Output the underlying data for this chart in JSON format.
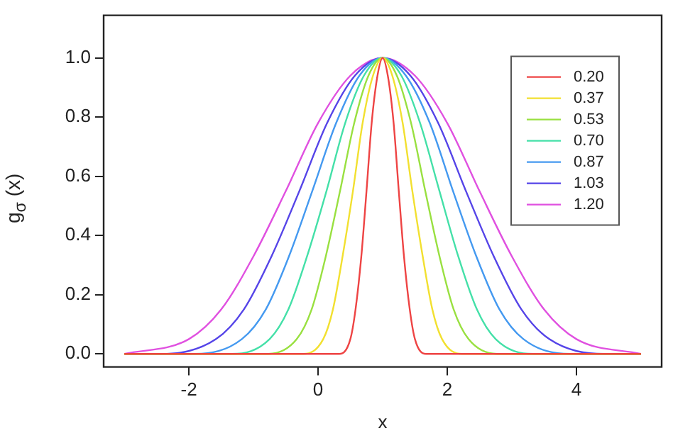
{
  "chart_data": {
    "type": "line",
    "xlabel": "x",
    "ylabel": "g$_{σ}$ (x)",
    "xlim": [
      -3.32,
      5.32
    ],
    "ylim": [
      -0.044,
      1.144
    ],
    "xticks": [
      -2,
      0,
      2,
      4
    ],
    "yticks": [
      {
        "value": 0,
        "label": "0.0"
      },
      {
        "value": 0.2,
        "label": "0.2"
      },
      {
        "value": 0.4,
        "label": "0.4"
      },
      {
        "value": 0.6,
        "label": "0.6"
      },
      {
        "value": 0.8,
        "label": "0.8"
      },
      {
        "value": 1,
        "label": "1.0"
      }
    ],
    "grid": false,
    "legend": "top right",
    "marker": "none",
    "line_style": "solid",
    "series": [
      {
        "name": "0.20",
        "color": "#ee4444",
        "x": [
          -3,
          0.33,
          0.5,
          0.58,
          0.67,
          0.75,
          0.83,
          0.92,
          1,
          1.08,
          1.17,
          1.25,
          1.33,
          1.42,
          1.5,
          1.67,
          5
        ],
        "values": [
          0,
          0,
          0.05,
          0.15,
          0.33,
          0.55,
          0.78,
          0.94,
          1,
          0.94,
          0.78,
          0.55,
          0.33,
          0.15,
          0.05,
          0,
          0
        ]
      },
      {
        "name": "0.37",
        "color": "#f2e030",
        "x": [
          -3,
          -0.23,
          0.08,
          0.23,
          0.38,
          0.54,
          0.69,
          0.85,
          1,
          1.15,
          1.31,
          1.46,
          1.62,
          1.77,
          1.92,
          2.23,
          5
        ],
        "values": [
          0,
          0,
          0.05,
          0.15,
          0.33,
          0.55,
          0.78,
          0.94,
          1,
          0.94,
          0.78,
          0.55,
          0.33,
          0.15,
          0.05,
          0,
          0
        ]
      },
      {
        "name": "0.53",
        "color": "#99e040",
        "x": [
          -3,
          -0.77,
          -0.33,
          -0.1,
          0.12,
          0.34,
          0.56,
          0.78,
          1,
          1.22,
          1.44,
          1.66,
          1.88,
          2.1,
          2.33,
          2.77,
          5
        ],
        "values": [
          0,
          0,
          0.05,
          0.15,
          0.33,
          0.55,
          0.78,
          0.94,
          1,
          0.94,
          0.78,
          0.55,
          0.33,
          0.15,
          0.05,
          0,
          0
        ]
      },
      {
        "name": "0.70",
        "color": "#44e0a8",
        "x": [
          -3,
          -1.33,
          -0.75,
          -0.46,
          -0.17,
          0.13,
          0.42,
          0.71,
          1,
          1.29,
          1.58,
          1.88,
          2.17,
          2.46,
          2.75,
          3.33,
          5
        ],
        "values": [
          0,
          0,
          0.05,
          0.15,
          0.33,
          0.55,
          0.78,
          0.94,
          1,
          0.94,
          0.78,
          0.55,
          0.33,
          0.15,
          0.05,
          0,
          0
        ]
      },
      {
        "name": "0.87",
        "color": "#4499f0",
        "x": [
          -3,
          -1.9,
          -1.18,
          -0.81,
          -0.45,
          -0.09,
          0.28,
          0.64,
          1,
          1.36,
          1.73,
          2.09,
          2.45,
          2.81,
          3.18,
          3.9,
          5
        ],
        "values": [
          0,
          0,
          0.05,
          0.15,
          0.33,
          0.55,
          0.78,
          0.94,
          1,
          0.94,
          0.78,
          0.55,
          0.33,
          0.15,
          0.05,
          0,
          0
        ]
      },
      {
        "name": "1.03",
        "color": "#5544e8",
        "x": [
          -3,
          -2.43,
          -1.58,
          -1.15,
          -0.72,
          -0.29,
          0.14,
          0.57,
          1,
          1.43,
          1.86,
          2.29,
          2.72,
          3.15,
          3.58,
          4.43,
          5
        ],
        "values": [
          0,
          0,
          0.05,
          0.15,
          0.33,
          0.55,
          0.78,
          0.94,
          1,
          0.94,
          0.78,
          0.55,
          0.33,
          0.15,
          0.05,
          0,
          0
        ]
      },
      {
        "name": "1.20",
        "color": "#e050e0",
        "x": [
          -3,
          -2,
          -1.5,
          -1,
          -0.5,
          0,
          0.5,
          1,
          1.5,
          2,
          2.5,
          3,
          3.5,
          4,
          5
        ],
        "values": [
          0,
          0.05,
          0.15,
          0.33,
          0.55,
          0.78,
          0.94,
          1,
          0.94,
          0.78,
          0.55,
          0.33,
          0.15,
          0.05,
          0
        ]
      }
    ]
  }
}
